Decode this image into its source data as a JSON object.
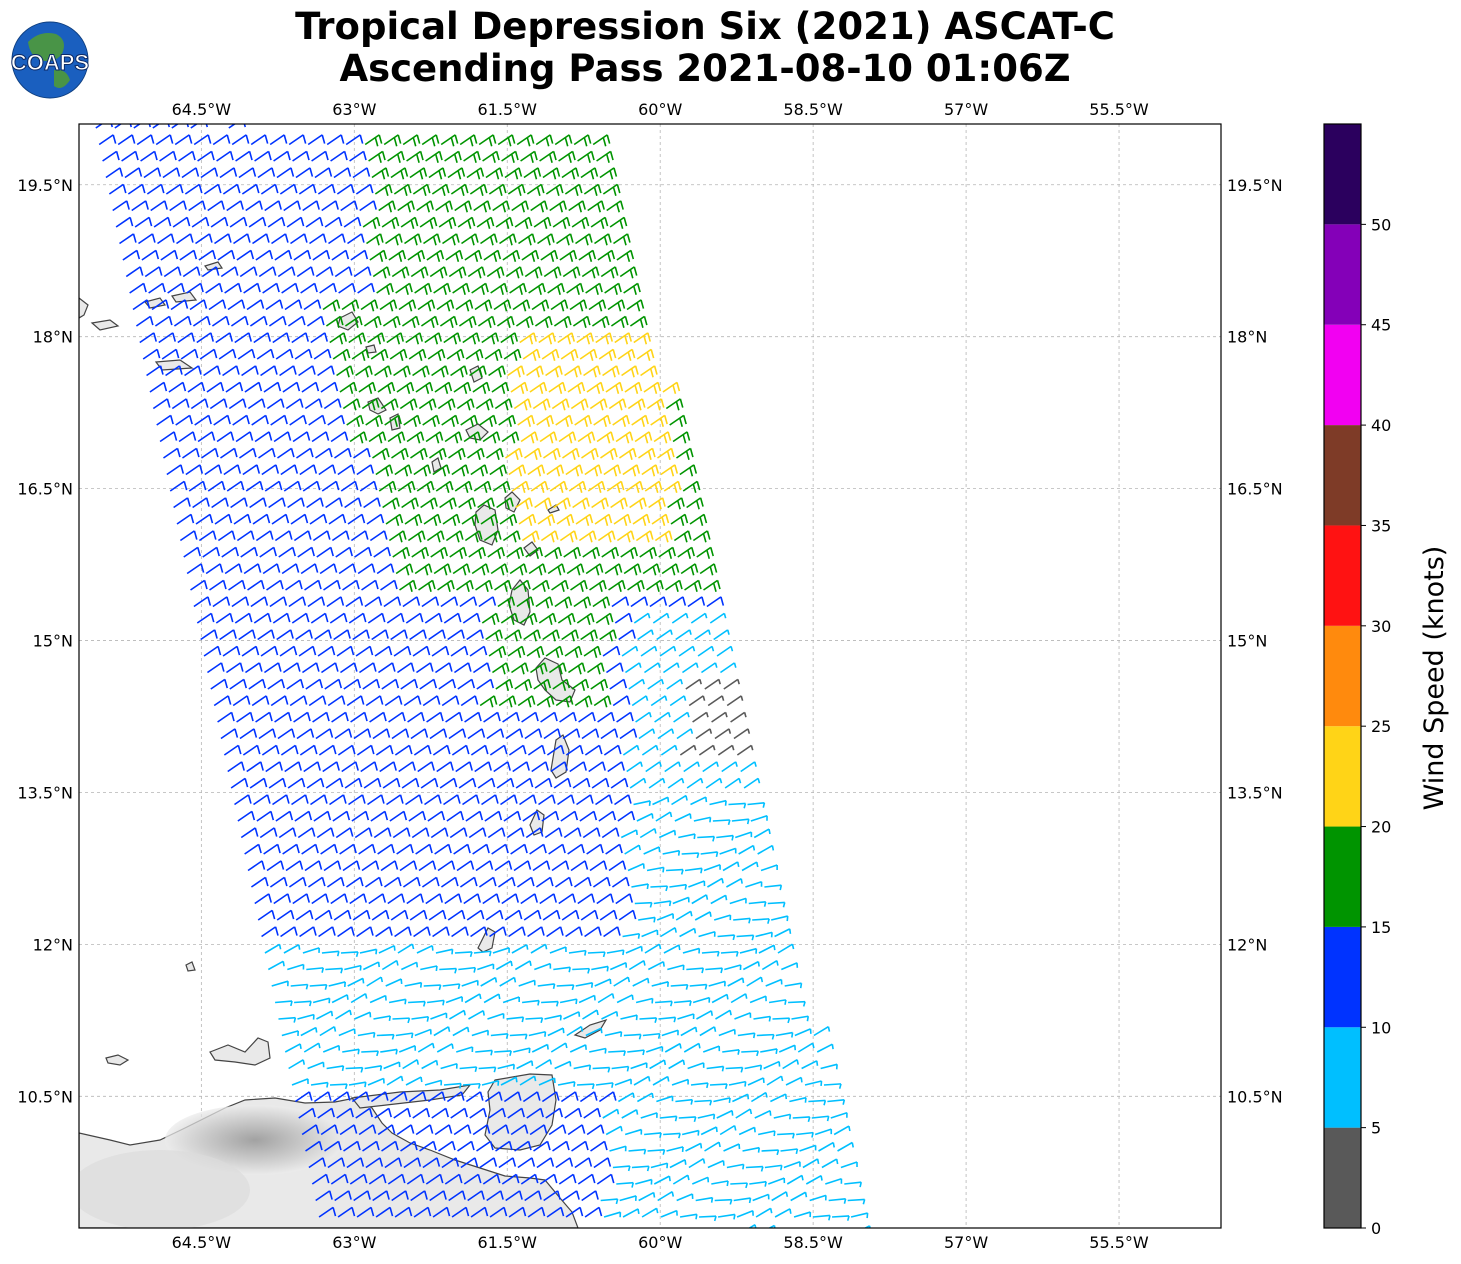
{
  "title": {
    "line1": "Tropical Depression Six (2021) ASCAT-C",
    "line2": "Ascending Pass 2021-08-10 01:06Z"
  },
  "logo": {
    "text": "COAPS"
  },
  "map": {
    "lon_range": [
      -65.7,
      -54.5
    ],
    "lat_range": [
      9.2,
      20.1
    ],
    "lon_ticks": [
      {
        "value": -64.5,
        "label": "64.5°W"
      },
      {
        "value": -63.0,
        "label": "63°W"
      },
      {
        "value": -61.5,
        "label": "61.5°W"
      },
      {
        "value": -60.0,
        "label": "60°W"
      },
      {
        "value": -58.5,
        "label": "58.5°W"
      },
      {
        "value": -57.0,
        "label": "57°W"
      },
      {
        "value": -55.5,
        "label": "55.5°W"
      }
    ],
    "lat_ticks": [
      {
        "value": 19.5,
        "label": "19.5°N"
      },
      {
        "value": 18.0,
        "label": "18°N"
      },
      {
        "value": 16.5,
        "label": "16.5°N"
      },
      {
        "value": 15.0,
        "label": "15°N"
      },
      {
        "value": 13.5,
        "label": "13.5°N"
      },
      {
        "value": 12.0,
        "label": "12°N"
      },
      {
        "value": 10.5,
        "label": "10.5°N"
      }
    ],
    "gridlines": true,
    "swath": "ascending pass, wind barbs colored by speed"
  },
  "colorbar": {
    "label": "Wind Speed (knots)",
    "bins": [
      {
        "from": 0,
        "to": 5,
        "color": "#595959"
      },
      {
        "from": 5,
        "to": 10,
        "color": "#00bfff"
      },
      {
        "from": 10,
        "to": 15,
        "color": "#0033ff"
      },
      {
        "from": 15,
        "to": 20,
        "color": "#009400"
      },
      {
        "from": 20,
        "to": 25,
        "color": "#ffd417"
      },
      {
        "from": 25,
        "to": 30,
        "color": "#ff8a0d"
      },
      {
        "from": 30,
        "to": 35,
        "color": "#ff1212"
      },
      {
        "from": 35,
        "to": 40,
        "color": "#7e3b27"
      },
      {
        "from": 40,
        "to": 45,
        "color": "#f200f2"
      },
      {
        "from": 45,
        "to": 50,
        "color": "#8400b8"
      },
      {
        "from": 50,
        "to": 55,
        "color": "#2b005e"
      }
    ],
    "tick_labels": [
      "0",
      "5",
      "10",
      "15",
      "20",
      "25",
      "30",
      "35",
      "40",
      "45",
      "50"
    ]
  }
}
